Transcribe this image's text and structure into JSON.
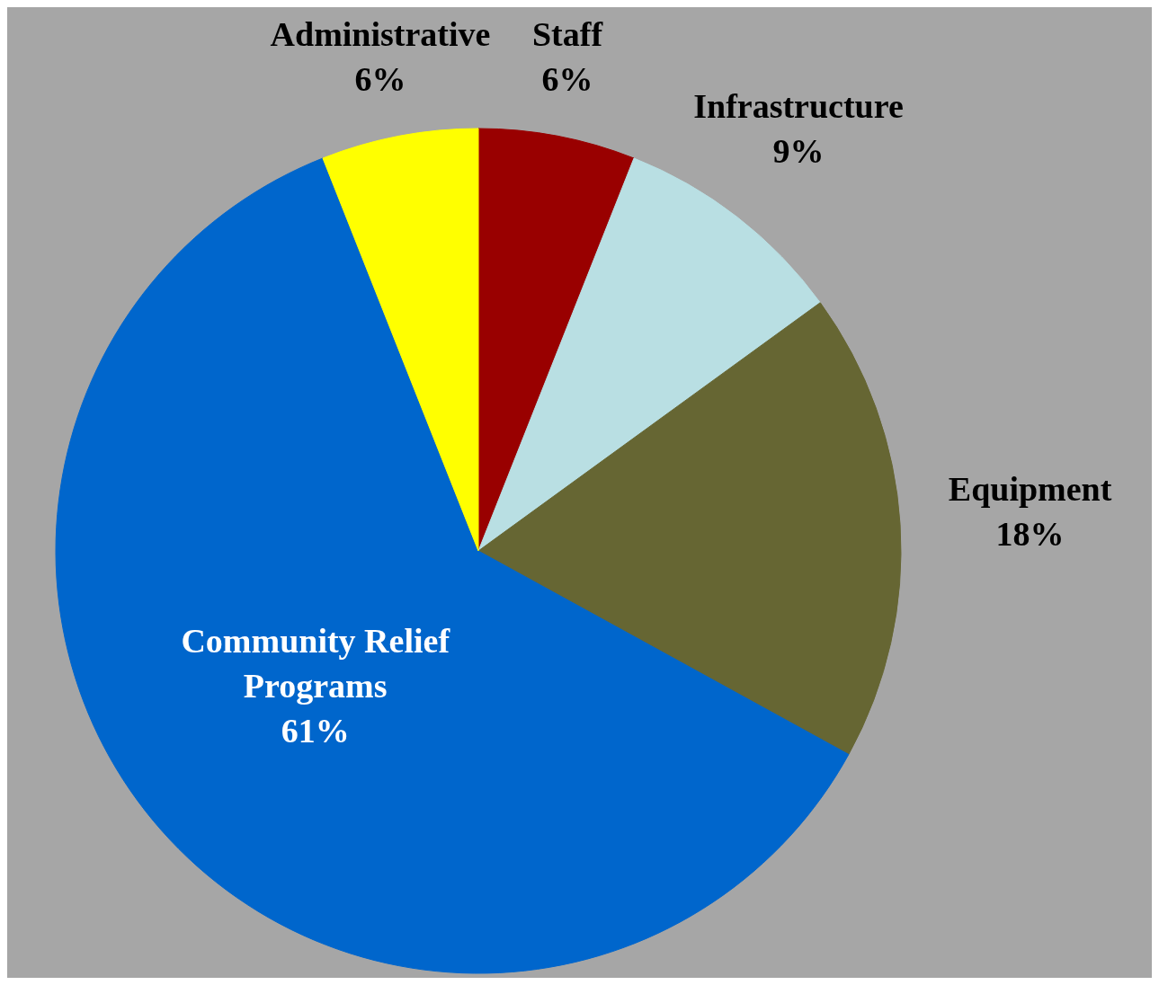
{
  "chart_data": {
    "type": "pie",
    "categories": [
      "Staff",
      "Infrastructure",
      "Equipment",
      "Community Relief Programs",
      "Administrative"
    ],
    "values": [
      6,
      9,
      18,
      61,
      6
    ],
    "value_labels": [
      "6%",
      "9%",
      "18%",
      "61%",
      "6%"
    ],
    "colors": [
      "#990000",
      "#b9dfe3",
      "#666633",
      "#0066cc",
      "#ffff00"
    ]
  }
}
